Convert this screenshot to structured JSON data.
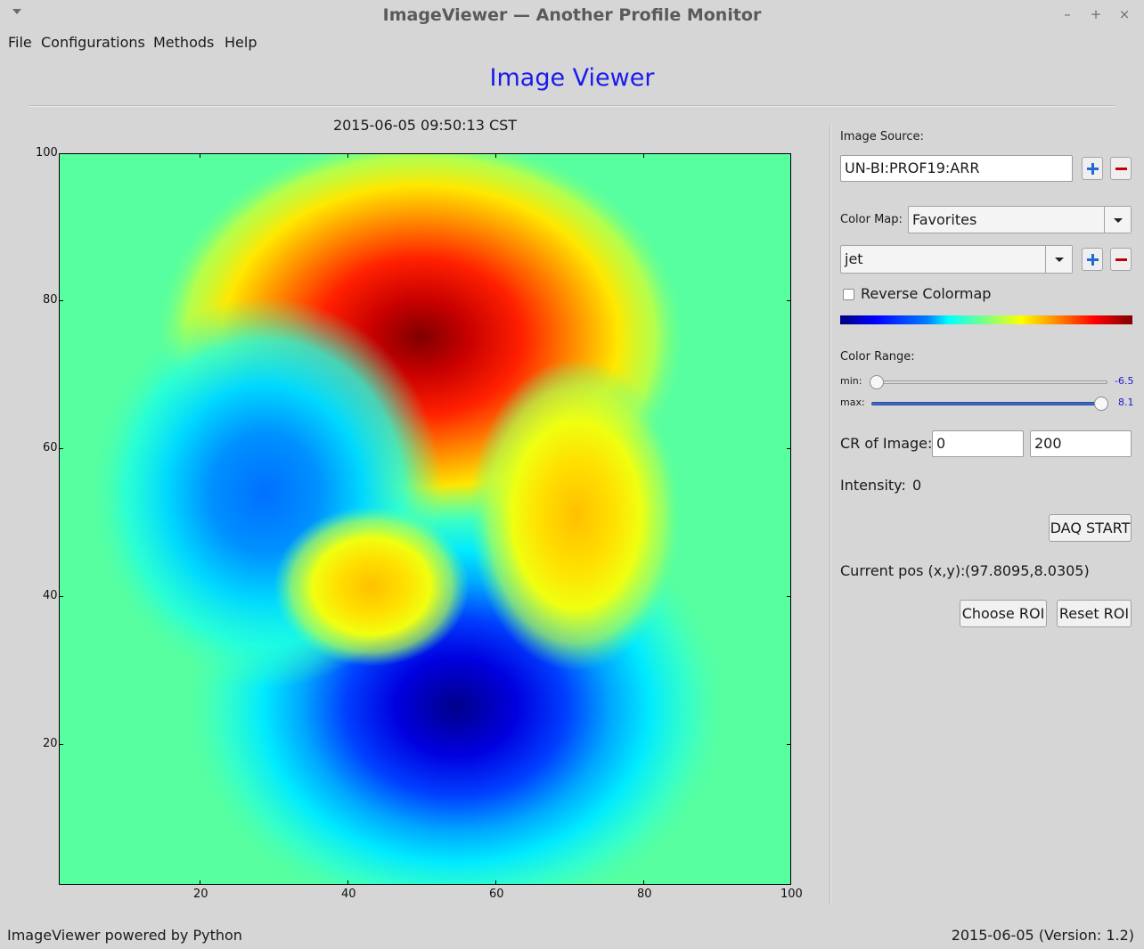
{
  "window": {
    "title": "ImageViewer — Another Profile Monitor",
    "controls": {
      "minimize": "–",
      "maximize": "+",
      "close": "×"
    }
  },
  "menubar": {
    "items": [
      "File",
      "Configurations",
      "Methods",
      "Help"
    ]
  },
  "heading": "Image Viewer",
  "plot": {
    "timestamp": "2015-06-05 09:50:13 CST",
    "x_ticks": [
      "20",
      "40",
      "60",
      "80",
      "100"
    ],
    "y_ticks": [
      "100",
      "80",
      "60",
      "40",
      "20"
    ],
    "colormap": "jet",
    "xlim": [
      0,
      100
    ],
    "ylim": [
      0,
      100
    ],
    "background_color": "#57ffa0"
  },
  "panel": {
    "image_source_label": "Image Source:",
    "image_source_value": "UN-BI:PROF19:ARR",
    "color_map_label": "Color Map:",
    "color_map_group": "Favorites",
    "color_map_value": "jet",
    "reverse_colormap_label": "Reverse Colormap",
    "reverse_colormap_checked": false,
    "color_range_label": "Color Range:",
    "min_label": "min:",
    "min_value": "-6.5",
    "max_label": "max:",
    "max_value": "8.1",
    "min_slider_fraction": 0.0,
    "max_slider_fraction": 1.0,
    "cr_label": "CR of Image:",
    "cr_min": "0",
    "cr_max": "200",
    "intensity_label": "Intensity:",
    "intensity_value": "0",
    "daq_button": "DAQ START",
    "current_pos_label": "Current pos (x,y):",
    "current_pos_value": "(97.8095,8.0305)",
    "choose_roi_button": "Choose ROI",
    "reset_roi_button": "Reset ROI",
    "accent_color": "#1f6ad6",
    "remove_color": "#c00000"
  },
  "status": {
    "left": "ImageViewer powered by Python",
    "right": "2015-06-05 (Version: 1.2)"
  }
}
